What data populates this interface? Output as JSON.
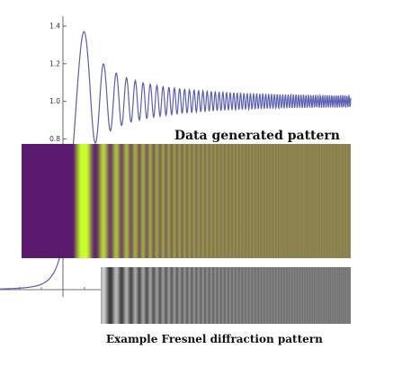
{
  "chart_data": [
    {
      "type": "line",
      "title": "",
      "xlabel": "",
      "ylabel": "",
      "ylim": [
        0,
        1.4
      ],
      "y_ticks": [
        {
          "label": "1.4",
          "value": 1.4
        },
        {
          "label": "1.2",
          "value": 1.2
        },
        {
          "label": "1.0",
          "value": 1.0
        },
        {
          "label": "0.8",
          "value": 0.8
        }
      ],
      "series": [
        {
          "color": "#5a5fb0",
          "shape": "Fresnel knife-edge intensity: near-zero left of the y-axis, rises to a first maximum of about 1.37, then decaying oscillations around 1.0 whose period shrinks to the right",
          "first_max": 1.37,
          "first_min": 0.78,
          "asymptote": 1.0
        }
      ],
      "grid": false,
      "legend": "none"
    },
    {
      "type": "heatmap",
      "caption": "Data generated pattern",
      "colormap": [
        "#5a1a6e",
        "#c8ff2a"
      ],
      "bands": "intensity of the plotted curve rendered as vertical fringes"
    },
    {
      "type": "heatmap",
      "caption": "Example Fresnel diffraction pattern",
      "colormap": [
        "#1e1e1e",
        "#e2e2e2"
      ],
      "bands": "grayscale photograph of diffraction fringes"
    }
  ]
}
